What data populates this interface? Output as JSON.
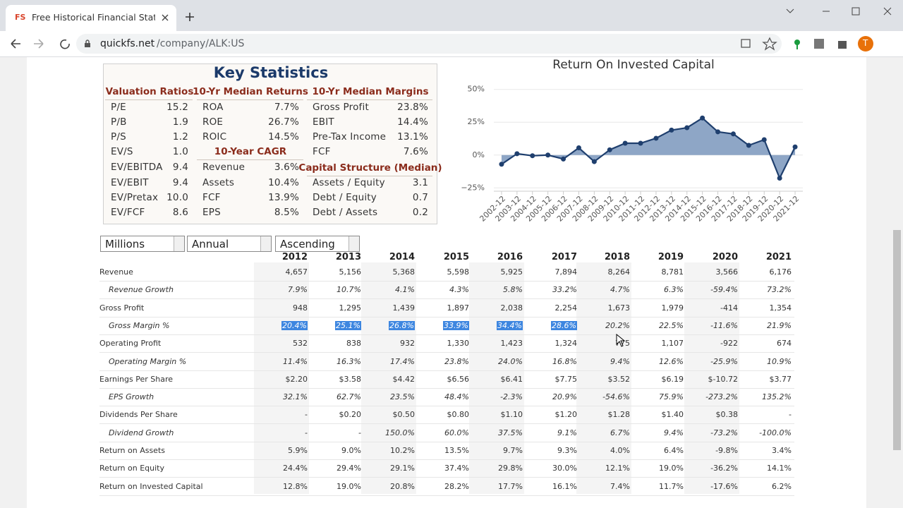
{
  "browser": {
    "favicon": "FS",
    "tab_title": "Free Historical Financial Statemen",
    "url_domain": "quickfs.net",
    "url_path": "/company/ALK:US",
    "profile": "T"
  },
  "key_stats": {
    "title": "Key Statistics",
    "valuation": {
      "heading": "Valuation Ratios",
      "rows": [
        [
          "P/E",
          "15.2"
        ],
        [
          "P/B",
          "1.9"
        ],
        [
          "P/S",
          "1.2"
        ],
        [
          "EV/S",
          "1.0"
        ],
        [
          "EV/EBITDA",
          "9.4"
        ],
        [
          "EV/EBIT",
          "9.4"
        ],
        [
          "EV/Pretax",
          "10.0"
        ],
        [
          "EV/FCF",
          "8.6"
        ]
      ]
    },
    "returns": {
      "heading": "10-Yr Median Returns",
      "rows": [
        [
          "ROA",
          "7.7%"
        ],
        [
          "ROE",
          "26.7%"
        ],
        [
          "ROIC",
          "14.5%"
        ]
      ]
    },
    "cagr": {
      "heading": "10-Year CAGR",
      "rows": [
        [
          "Revenue",
          "3.6%"
        ],
        [
          "Assets",
          "10.4%"
        ],
        [
          "FCF",
          "13.9%"
        ],
        [
          "EPS",
          "8.5%"
        ]
      ]
    },
    "margins": {
      "heading": "10-Yr Median Margins",
      "rows": [
        [
          "Gross Profit",
          "23.8%"
        ],
        [
          "EBIT",
          "14.4%"
        ],
        [
          "Pre-Tax Income",
          "13.1%"
        ],
        [
          "FCF",
          "7.6%"
        ]
      ]
    },
    "capital": {
      "heading": "Capital Structure (Median)",
      "rows": [
        [
          "Assets / Equity",
          "3.1"
        ],
        [
          "Debt / Equity",
          "0.7"
        ],
        [
          "Debt / Assets",
          "0.2"
        ]
      ]
    }
  },
  "chart_data": {
    "type": "area",
    "title": "Return On Invested Capital",
    "categories": [
      "2002-12",
      "2003-12",
      "2004-12",
      "2005-12",
      "2006-12",
      "2007-12",
      "2008-12",
      "2009-12",
      "2010-12",
      "2011-12",
      "2012-12",
      "2013-12",
      "2014-12",
      "2015-12",
      "2016-12",
      "2017-12",
      "2018-12",
      "2019-12",
      "2020-12",
      "2021-12"
    ],
    "values": [
      -7,
      1,
      -0.5,
      0,
      -3,
      5.5,
      -5,
      4,
      9,
      9,
      12.8,
      19.0,
      20.8,
      28.2,
      17.7,
      16.1,
      7.4,
      11.7,
      -17.6,
      6.2
    ],
    "color": "#1f3f6e",
    "fill": "#8ea6c6",
    "ylim": [
      -27,
      52
    ],
    "yticks": [
      {
        "value": -25,
        "label": "−25%"
      },
      {
        "value": 0,
        "label": "0%"
      },
      {
        "value": 25,
        "label": "25%"
      },
      {
        "value": 50,
        "label": "50%"
      }
    ],
    "grid": true
  },
  "controls": {
    "units": "Millions",
    "period": "Annual",
    "order": "Ascending"
  },
  "table": {
    "columns": [
      "2012",
      "2013",
      "2014",
      "2015",
      "2016",
      "2017",
      "2018",
      "2019",
      "2020",
      "2021"
    ],
    "rows": [
      {
        "label": "Revenue",
        "sub": false,
        "values": [
          "4,657",
          "5,156",
          "5,368",
          "5,598",
          "5,925",
          "7,894",
          "8,264",
          "8,781",
          "3,566",
          "6,176"
        ]
      },
      {
        "label": "Revenue Growth",
        "sub": true,
        "values": [
          "7.9%",
          "10.7%",
          "4.1%",
          "4.3%",
          "5.8%",
          "33.2%",
          "4.7%",
          "6.3%",
          "-59.4%",
          "73.2%"
        ]
      },
      {
        "label": "Gross Profit",
        "sub": false,
        "values": [
          "948",
          "1,295",
          "1,439",
          "1,897",
          "2,038",
          "2,254",
          "1,673",
          "1,979",
          "-414",
          "1,354"
        ]
      },
      {
        "label": "Gross Margin %",
        "sub": true,
        "selected": 6,
        "values": [
          "20.4%",
          "25.1%",
          "26.8%",
          "33.9%",
          "34.4%",
          "28.6%",
          "20.2%",
          "22.5%",
          "-11.6%",
          "21.9%"
        ]
      },
      {
        "label": "Operating Profit",
        "sub": false,
        "values": [
          "532",
          "838",
          "932",
          "1,330",
          "1,423",
          "1,324",
          "775",
          "1,107",
          "-922",
          "674"
        ]
      },
      {
        "label": "Operating Margin %",
        "sub": true,
        "values": [
          "11.4%",
          "16.3%",
          "17.4%",
          "23.8%",
          "24.0%",
          "16.8%",
          "9.4%",
          "12.6%",
          "-25.9%",
          "10.9%"
        ]
      },
      {
        "label": "Earnings Per Share",
        "sub": false,
        "values": [
          "$2.20",
          "$3.58",
          "$4.42",
          "$6.56",
          "$6.41",
          "$7.75",
          "$3.52",
          "$6.19",
          "$-10.72",
          "$3.77"
        ]
      },
      {
        "label": "EPS Growth",
        "sub": true,
        "values": [
          "32.1%",
          "62.7%",
          "23.5%",
          "48.4%",
          "-2.3%",
          "20.9%",
          "-54.6%",
          "75.9%",
          "-273.2%",
          "135.2%"
        ]
      },
      {
        "label": "Dividends Per Share",
        "sub": false,
        "values": [
          "-",
          "$0.20",
          "$0.50",
          "$0.80",
          "$1.10",
          "$1.20",
          "$1.28",
          "$1.40",
          "$0.38",
          "-"
        ]
      },
      {
        "label": "Dividend Growth",
        "sub": true,
        "values": [
          "-",
          "-",
          "150.0%",
          "60.0%",
          "37.5%",
          "9.1%",
          "6.7%",
          "9.4%",
          "-73.2%",
          "-100.0%"
        ]
      },
      {
        "label": "Return on Assets",
        "sub": false,
        "values": [
          "5.9%",
          "9.0%",
          "10.2%",
          "13.5%",
          "9.7%",
          "9.3%",
          "4.0%",
          "6.4%",
          "-9.8%",
          "3.4%"
        ]
      },
      {
        "label": "Return on Equity",
        "sub": false,
        "values": [
          "24.4%",
          "29.4%",
          "29.1%",
          "37.4%",
          "29.8%",
          "30.0%",
          "12.1%",
          "19.0%",
          "-36.2%",
          "14.1%"
        ]
      },
      {
        "label": "Return on Invested Capital",
        "sub": false,
        "values": [
          "12.8%",
          "19.0%",
          "20.8%",
          "28.2%",
          "17.7%",
          "16.1%",
          "7.4%",
          "11.7%",
          "-17.6%",
          "6.2%"
        ]
      }
    ]
  }
}
